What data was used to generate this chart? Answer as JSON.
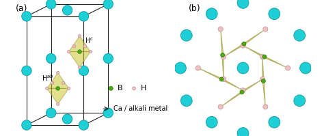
{
  "bg_color": "#ffffff",
  "cyan_color": "#1ecfd6",
  "cyan_edge": "#15a0a8",
  "B_color": "#4aaa10",
  "B_edge": "#2a7a00",
  "H_color": "#f0c0c0",
  "H_edge": "#c09090",
  "tetra_face_color": "#c8c830",
  "tetra_face_alpha": 0.55,
  "tetra_edge_color": "#908830",
  "line_color": "#222222",
  "label_a": "(a)",
  "label_b": "(b)",
  "legend_B": "B",
  "legend_H": "H",
  "legend_Ca": "Ca / alkali metal"
}
